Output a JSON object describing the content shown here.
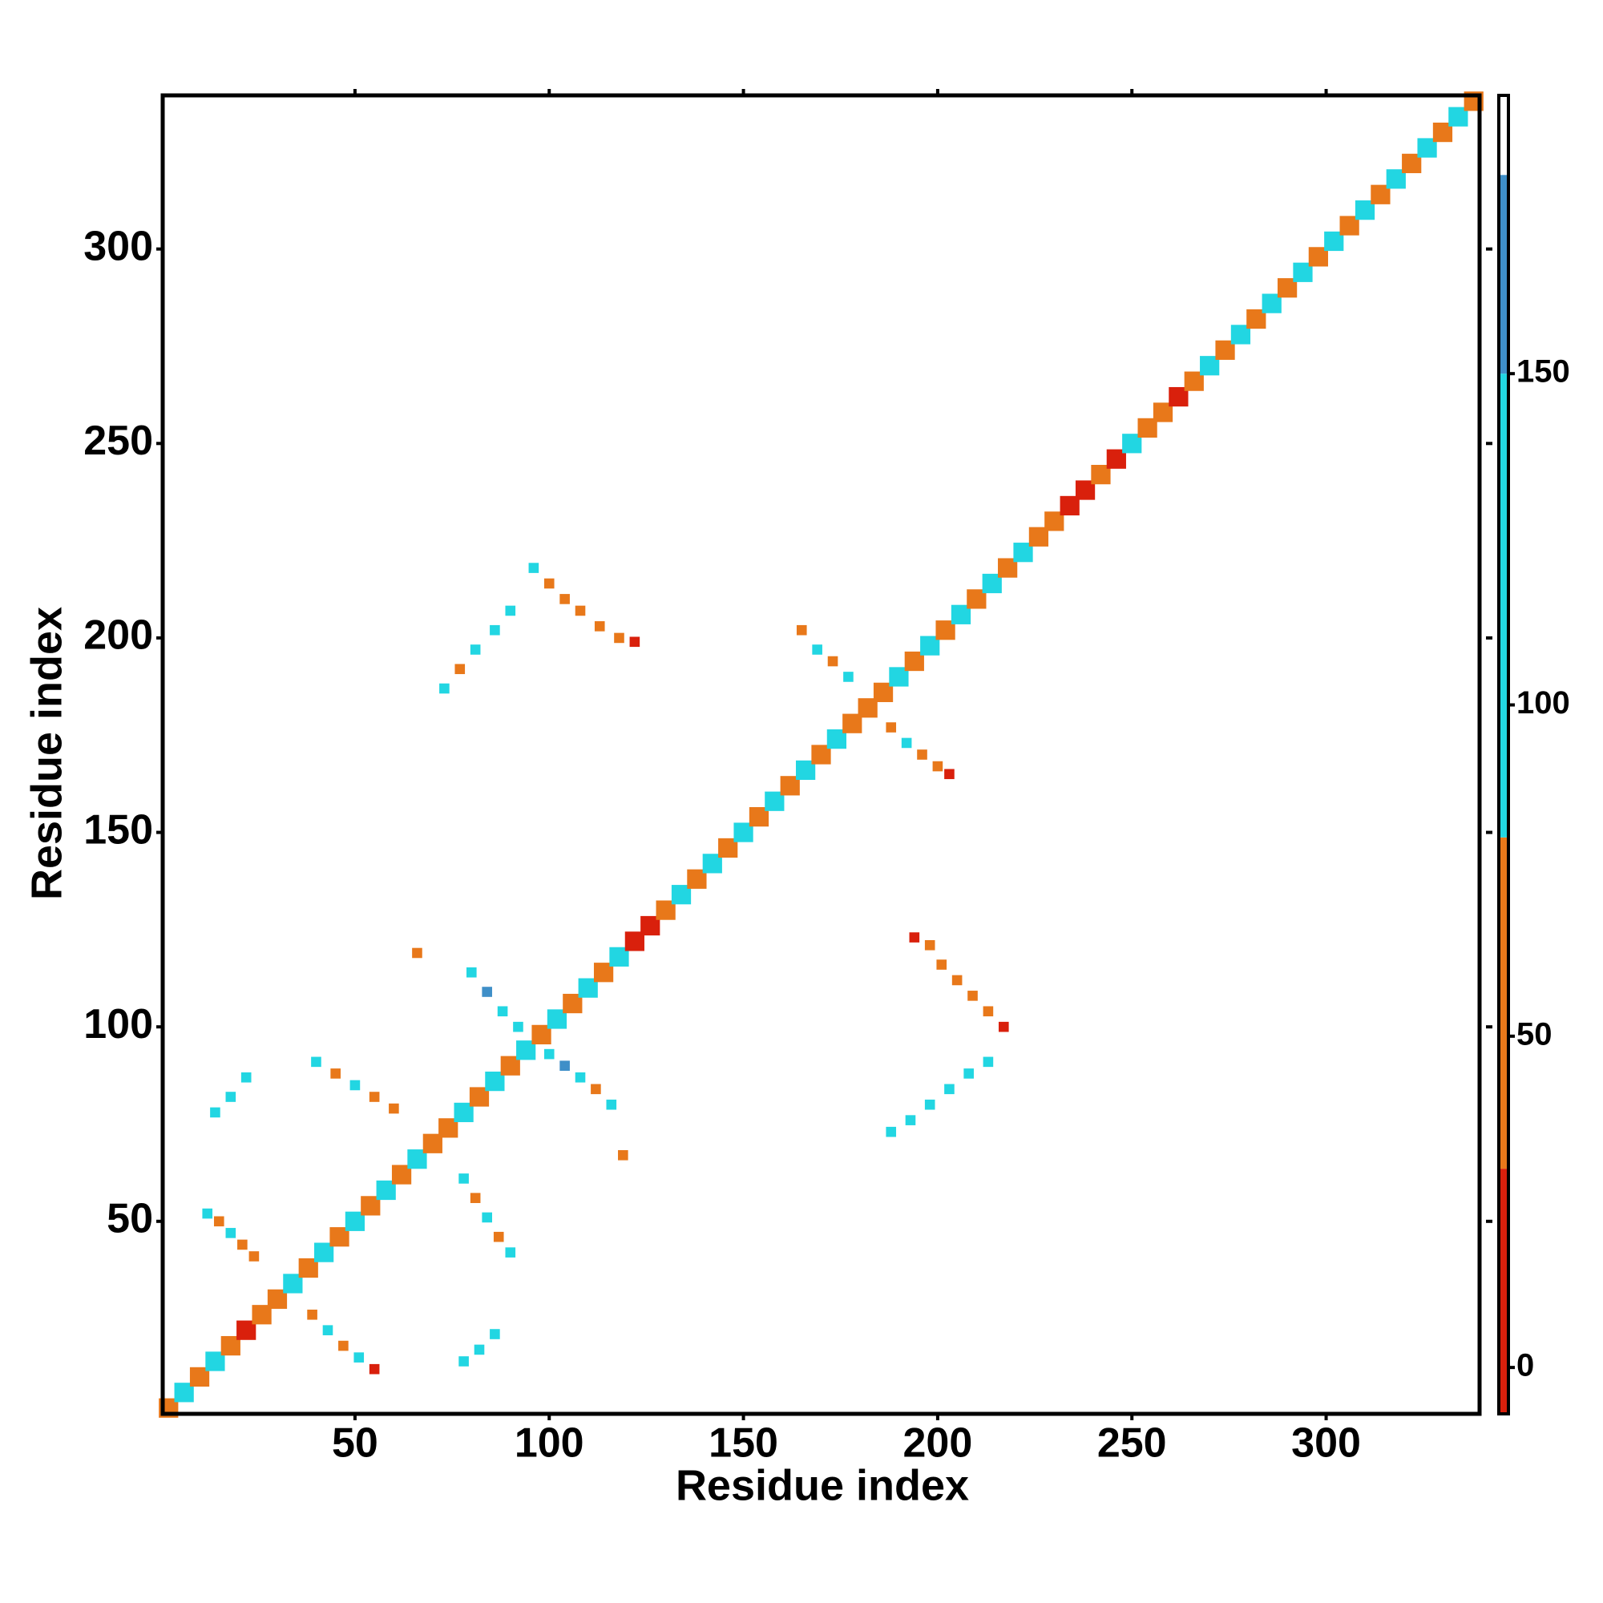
{
  "chart_data": {
    "type": "heatmap",
    "xlabel": "Residue index",
    "ylabel": "Residue index",
    "xlim": [
      0.5,
      339.5
    ],
    "ylim": [
      0.5,
      339.5
    ],
    "xticks": [
      50,
      100,
      150,
      200,
      250,
      300
    ],
    "yticks": [
      50,
      100,
      150,
      200,
      250,
      300
    ],
    "x": [
      2,
      6,
      10,
      14,
      18,
      22,
      26,
      30,
      34,
      38,
      42,
      46,
      50,
      54,
      58,
      62,
      66,
      70,
      74,
      78,
      82,
      86,
      90,
      94,
      98,
      102,
      106,
      110,
      114,
      118,
      122,
      126,
      130,
      134,
      138,
      142,
      146,
      150,
      154,
      158,
      162,
      166,
      170,
      174,
      178,
      182,
      186,
      190,
      194,
      198,
      202,
      206,
      210,
      214,
      218,
      222,
      226,
      230,
      234,
      238,
      242,
      246,
      250,
      254,
      258,
      262,
      266,
      270,
      274,
      278,
      282,
      286,
      290,
      294,
      298,
      302,
      306,
      310,
      314,
      318,
      322,
      326,
      330,
      334,
      338,
      12,
      15,
      18,
      21,
      24,
      39,
      43,
      47,
      51,
      55,
      14,
      18,
      22,
      40,
      45,
      50,
      55,
      60,
      78,
      81,
      84,
      87,
      90,
      78,
      82,
      86,
      66,
      119,
      80,
      84,
      88,
      92,
      100,
      104,
      108,
      112,
      116,
      73,
      77,
      81,
      86,
      90,
      96,
      100,
      104,
      108,
      113,
      118,
      122,
      165,
      169,
      173,
      177,
      188,
      192,
      196,
      200,
      203,
      194,
      198,
      201,
      205,
      209,
      213,
      217,
      188,
      193,
      198,
      203,
      208,
      213
    ],
    "y": [
      2,
      6,
      10,
      14,
      18,
      22,
      26,
      30,
      34,
      38,
      42,
      46,
      50,
      54,
      58,
      62,
      66,
      70,
      74,
      78,
      82,
      86,
      90,
      94,
      98,
      102,
      106,
      110,
      114,
      118,
      122,
      126,
      130,
      134,
      138,
      142,
      146,
      150,
      154,
      158,
      162,
      166,
      170,
      174,
      178,
      182,
      186,
      190,
      194,
      198,
      202,
      206,
      210,
      214,
      218,
      222,
      226,
      230,
      234,
      238,
      242,
      246,
      250,
      254,
      258,
      262,
      266,
      270,
      274,
      278,
      282,
      286,
      290,
      294,
      298,
      302,
      306,
      310,
      314,
      318,
      322,
      326,
      330,
      334,
      338,
      52,
      50,
      47,
      44,
      41,
      26,
      22,
      18,
      15,
      12,
      78,
      82,
      87,
      91,
      88,
      85,
      82,
      79,
      61,
      56,
      51,
      46,
      42,
      14,
      17,
      21,
      119,
      67,
      114,
      109,
      104,
      100,
      93,
      90,
      87,
      84,
      80,
      187,
      192,
      197,
      202,
      207,
      218,
      214,
      210,
      207,
      203,
      200,
      199,
      202,
      197,
      194,
      190,
      177,
      173,
      170,
      167,
      165,
      123,
      121,
      116,
      112,
      108,
      104,
      100,
      73,
      76,
      80,
      84,
      88,
      91
    ],
    "values": [
      65,
      110,
      65,
      110,
      65,
      15,
      65,
      45,
      110,
      65,
      110,
      65,
      110,
      65,
      110,
      65,
      110,
      65,
      45,
      110,
      65,
      110,
      65,
      110,
      65,
      110,
      65,
      110,
      65,
      110,
      15,
      15,
      65,
      110,
      65,
      110,
      65,
      110,
      65,
      110,
      65,
      110,
      65,
      110,
      65,
      45,
      65,
      110,
      65,
      110,
      65,
      110,
      65,
      110,
      65,
      110,
      65,
      65,
      15,
      15,
      45,
      15,
      110,
      65,
      45,
      15,
      65,
      110,
      65,
      110,
      65,
      110,
      65,
      110,
      65,
      110,
      65,
      110,
      65,
      110,
      65,
      110,
      65,
      110,
      65,
      110,
      65,
      110,
      65,
      45,
      65,
      110,
      65,
      110,
      15,
      110,
      110,
      110,
      110,
      65,
      110,
      65,
      45,
      110,
      65,
      110,
      65,
      110,
      110,
      110,
      110,
      45,
      45,
      110,
      160,
      110,
      110,
      110,
      160,
      110,
      65,
      110,
      110,
      65,
      110,
      110,
      110,
      110,
      65,
      45,
      65,
      45,
      65,
      15,
      65,
      110,
      65,
      110,
      65,
      110,
      65,
      45,
      15,
      15,
      45,
      65,
      45,
      65,
      45,
      15,
      110,
      110,
      110,
      110,
      110,
      110
    ],
    "colorbar": {
      "lim": [
        -7,
        192
      ],
      "ticks": [
        0,
        50,
        100,
        150
      ],
      "segments": [
        {
          "from": -7,
          "to": 30,
          "color": "#d9200c"
        },
        {
          "from": 30,
          "to": 80,
          "color": "#e8781a"
        },
        {
          "from": 80,
          "to": 150,
          "color": "#22d6e2"
        },
        {
          "from": 150,
          "to": 180,
          "color": "#3f8fc8"
        },
        {
          "from": 180,
          "to": 192,
          "color": "#ffffff"
        }
      ]
    }
  }
}
